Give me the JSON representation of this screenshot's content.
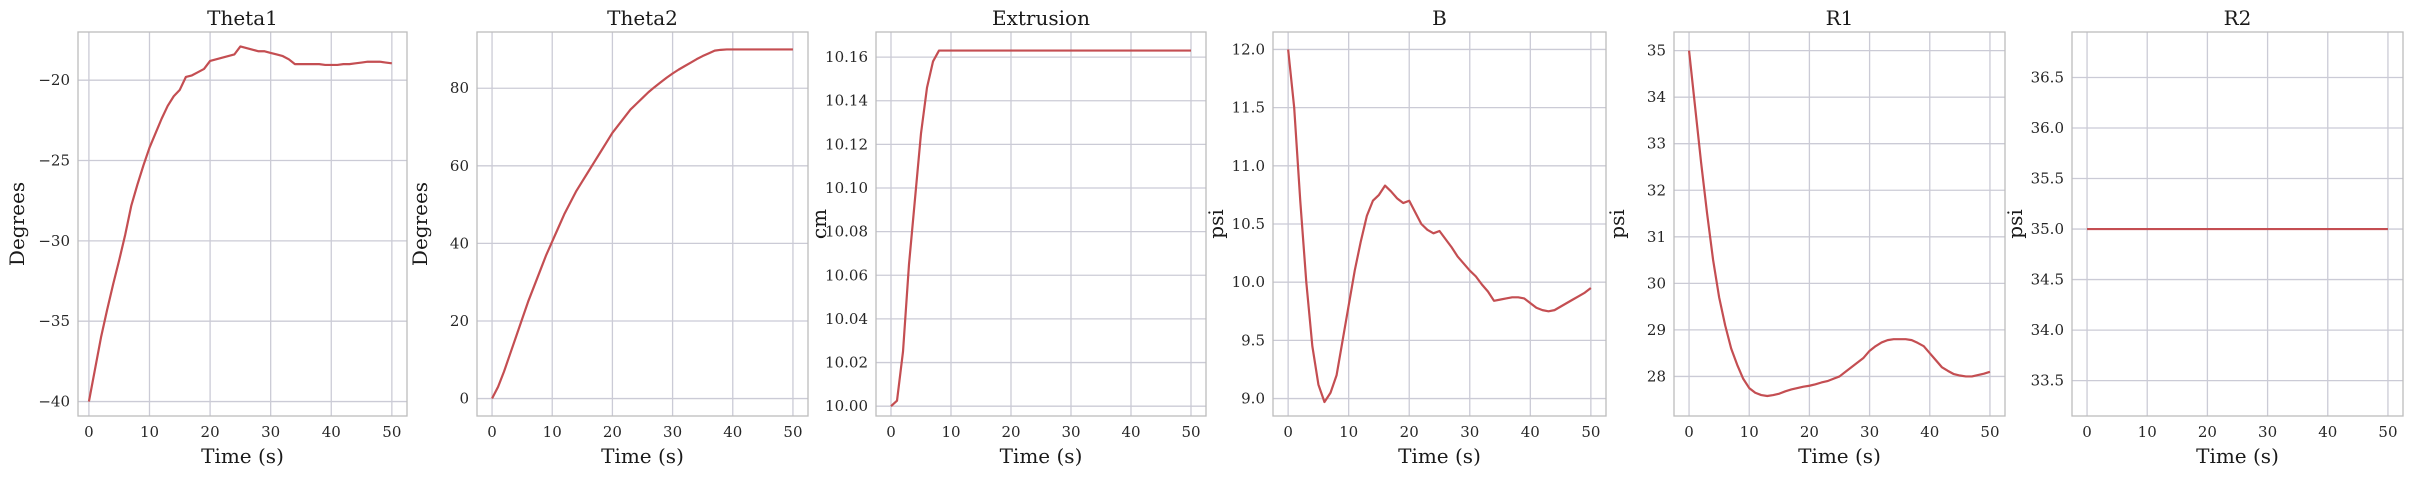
{
  "colors": {
    "series": "#c44e52"
  },
  "chart_data": [
    {
      "type": "line",
      "title": "Theta1",
      "xlabel": "Time (s)",
      "ylabel": "Degrees",
      "xlim": [
        -1.8,
        52.5
      ],
      "ylim": [
        -40.9,
        -17.0
      ],
      "xticks": [
        0,
        10,
        20,
        30,
        40,
        50
      ],
      "yticks": [
        -40,
        -35,
        -30,
        -25,
        -20
      ],
      "ytick_labels": [
        "−40",
        "−35",
        "−30",
        "−25",
        "−20"
      ],
      "grid": true,
      "x": [
        0,
        1,
        2,
        3,
        4,
        5,
        6,
        7,
        8,
        9,
        10,
        11,
        12,
        13,
        14,
        15,
        16,
        17,
        18,
        19,
        20,
        21,
        22,
        23,
        24,
        25,
        26,
        27,
        28,
        29,
        30,
        31,
        32,
        33,
        34,
        35,
        36,
        37,
        38,
        39,
        40,
        41,
        42,
        43,
        44,
        45,
        46,
        47,
        48,
        49,
        50
      ],
      "y": [
        -40.0,
        -38.0,
        -36.0,
        -34.3,
        -32.7,
        -31.2,
        -29.6,
        -27.8,
        -26.5,
        -25.3,
        -24.2,
        -23.3,
        -22.4,
        -21.6,
        -21.0,
        -20.6,
        -19.8,
        -19.7,
        -19.5,
        -19.3,
        -18.8,
        -18.7,
        -18.6,
        -18.5,
        -18.4,
        -17.9,
        -18.0,
        -18.1,
        -18.2,
        -18.2,
        -18.3,
        -18.4,
        -18.5,
        -18.7,
        -19.0,
        -19.0,
        -19.0,
        -19.0,
        -19.0,
        -19.05,
        -19.05,
        -19.05,
        -19.0,
        -19.0,
        -18.95,
        -18.9,
        -18.85,
        -18.85,
        -18.85,
        -18.9,
        -18.95
      ]
    },
    {
      "type": "line",
      "title": "Theta2",
      "xlabel": "Time (s)",
      "ylabel": "Degrees",
      "xlim": [
        -2.5,
        52.5
      ],
      "ylim": [
        -4.5,
        94.5
      ],
      "xticks": [
        0,
        10,
        20,
        30,
        40,
        50
      ],
      "yticks": [
        0,
        20,
        40,
        60,
        80
      ],
      "grid": true,
      "x": [
        0,
        1,
        2,
        3,
        4,
        5,
        6,
        7,
        8,
        9,
        10,
        11,
        12,
        13,
        14,
        15,
        16,
        17,
        18,
        19,
        20,
        21,
        22,
        23,
        24,
        25,
        26,
        27,
        28,
        29,
        30,
        31,
        32,
        33,
        34,
        35,
        36,
        37,
        38,
        39,
        40,
        41,
        42,
        43,
        44,
        45,
        46,
        47,
        48,
        49,
        50
      ],
      "y": [
        0.0,
        3.0,
        7.0,
        11.5,
        16.0,
        20.5,
        25.0,
        29.0,
        33.0,
        37.0,
        40.5,
        44.0,
        47.5,
        50.5,
        53.5,
        56.0,
        58.5,
        61.0,
        63.5,
        66.0,
        68.5,
        70.5,
        72.5,
        74.5,
        76.0,
        77.5,
        79.0,
        80.3,
        81.5,
        82.7,
        83.8,
        84.8,
        85.7,
        86.6,
        87.5,
        88.3,
        89.0,
        89.7,
        89.9,
        90.0,
        90.0,
        90.0,
        90.0,
        90.0,
        90.0,
        90.0,
        90.0,
        90.0,
        90.0,
        90.0,
        90.0
      ]
    },
    {
      "type": "line",
      "title": "Extrusion",
      "xlabel": "Time (s)",
      "ylabel": "cm",
      "xlim": [
        -2.5,
        52.5
      ],
      "ylim": [
        9.9955,
        10.1715
      ],
      "xticks": [
        0,
        10,
        20,
        30,
        40,
        50
      ],
      "yticks": [
        10.0,
        10.02,
        10.04,
        10.06,
        10.08,
        10.1,
        10.12,
        10.14,
        10.16
      ],
      "ytick_labels": [
        "10.00",
        "10.02",
        "10.04",
        "10.06",
        "10.08",
        "10.10",
        "10.12",
        "10.14",
        "10.16"
      ],
      "grid": true,
      "x": [
        0,
        1,
        2,
        3,
        4,
        5,
        6,
        7,
        8,
        9,
        10,
        15,
        20,
        25,
        30,
        35,
        40,
        45,
        50
      ],
      "y": [
        10.0,
        10.0025,
        10.025,
        10.065,
        10.095,
        10.125,
        10.146,
        10.158,
        10.163,
        10.163,
        10.163,
        10.163,
        10.163,
        10.163,
        10.163,
        10.163,
        10.163,
        10.163,
        10.163
      ]
    },
    {
      "type": "line",
      "title": "B",
      "xlabel": "Time (s)",
      "ylabel": "psi",
      "xlim": [
        -2.5,
        52.5
      ],
      "ylim": [
        8.85,
        12.15
      ],
      "xticks": [
        0,
        10,
        20,
        30,
        40,
        50
      ],
      "yticks": [
        9.0,
        9.5,
        10.0,
        10.5,
        11.0,
        11.5,
        12.0
      ],
      "ytick_labels": [
        "9.0",
        "9.5",
        "10.0",
        "10.5",
        "11.0",
        "11.5",
        "12.0"
      ],
      "grid": true,
      "x": [
        0,
        1,
        2,
        3,
        4,
        5,
        6,
        7,
        8,
        9,
        10,
        11,
        12,
        13,
        14,
        15,
        16,
        17,
        18,
        19,
        20,
        21,
        22,
        23,
        24,
        25,
        26,
        27,
        28,
        29,
        30,
        31,
        32,
        33,
        34,
        35,
        36,
        37,
        38,
        39,
        40,
        41,
        42,
        43,
        44,
        45,
        46,
        47,
        48,
        49,
        50
      ],
      "y": [
        12.0,
        11.5,
        10.7,
        10.0,
        9.45,
        9.12,
        8.97,
        9.05,
        9.2,
        9.5,
        9.8,
        10.1,
        10.35,
        10.57,
        10.7,
        10.75,
        10.83,
        10.78,
        10.72,
        10.68,
        10.7,
        10.6,
        10.5,
        10.45,
        10.42,
        10.44,
        10.37,
        10.3,
        10.22,
        10.16,
        10.1,
        10.05,
        9.98,
        9.92,
        9.84,
        9.85,
        9.86,
        9.87,
        9.87,
        9.86,
        9.82,
        9.78,
        9.76,
        9.75,
        9.76,
        9.79,
        9.82,
        9.85,
        9.88,
        9.91,
        9.95
      ]
    },
    {
      "type": "line",
      "title": "R1",
      "xlabel": "Time (s)",
      "ylabel": "psi",
      "xlim": [
        -2.5,
        52.5
      ],
      "ylim": [
        27.15,
        35.4
      ],
      "xticks": [
        0,
        10,
        20,
        30,
        40,
        50
      ],
      "yticks": [
        28,
        29,
        30,
        31,
        32,
        33,
        34,
        35
      ],
      "grid": true,
      "x": [
        0,
        1,
        2,
        3,
        4,
        5,
        6,
        7,
        8,
        9,
        10,
        11,
        12,
        13,
        14,
        15,
        16,
        17,
        18,
        19,
        20,
        21,
        22,
        23,
        24,
        25,
        26,
        27,
        28,
        29,
        30,
        31,
        32,
        33,
        34,
        35,
        36,
        37,
        38,
        39,
        40,
        41,
        42,
        43,
        44,
        45,
        46,
        47,
        48,
        49,
        50
      ],
      "y": [
        35.0,
        33.8,
        32.6,
        31.5,
        30.5,
        29.7,
        29.1,
        28.6,
        28.25,
        27.95,
        27.75,
        27.65,
        27.6,
        27.58,
        27.6,
        27.63,
        27.68,
        27.72,
        27.75,
        27.78,
        27.8,
        27.83,
        27.87,
        27.9,
        27.95,
        28.0,
        28.1,
        28.2,
        28.3,
        28.4,
        28.55,
        28.65,
        28.73,
        28.78,
        28.8,
        28.8,
        28.8,
        28.78,
        28.72,
        28.65,
        28.5,
        28.35,
        28.2,
        28.12,
        28.05,
        28.02,
        28.0,
        28.0,
        28.03,
        28.06,
        28.1
      ]
    },
    {
      "type": "line",
      "title": "R2",
      "xlabel": "Time (s)",
      "ylabel": "psi",
      "xlim": [
        -2.5,
        52.5
      ],
      "ylim": [
        33.15,
        36.95
      ],
      "xticks": [
        0,
        10,
        20,
        30,
        40,
        50
      ],
      "yticks": [
        33.5,
        34.0,
        34.5,
        35.0,
        35.5,
        36.0,
        36.5
      ],
      "ytick_labels": [
        "33.5",
        "34.0",
        "34.5",
        "35.0",
        "35.5",
        "36.0",
        "36.5"
      ],
      "grid": true,
      "x": [
        0,
        50
      ],
      "y": [
        35.0,
        35.0
      ]
    }
  ]
}
